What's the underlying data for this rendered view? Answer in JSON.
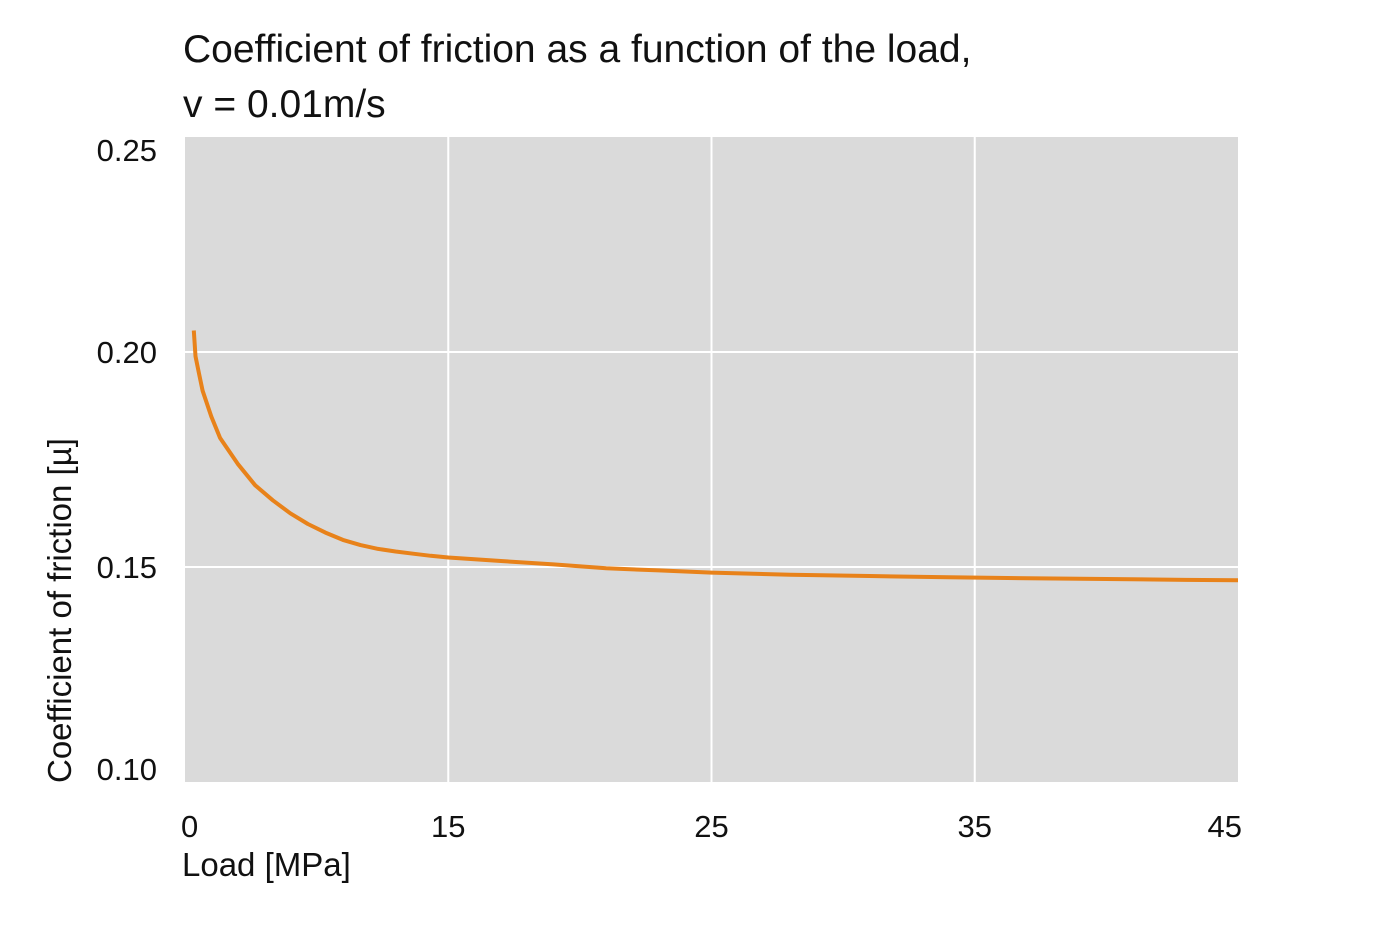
{
  "chart_data": {
    "type": "line",
    "title_lines": [
      "Coefficient of friction as a function of the load,",
      "v = 0.01m/s"
    ],
    "xlabel": "Load [MPa]",
    "ylabel": "Coefficient of friction [µ]",
    "x_ticks": [
      0,
      15,
      25,
      35,
      45
    ],
    "x_tick_labels": [
      "0",
      "15",
      "25",
      "35",
      "45"
    ],
    "y_ticks": [
      0.1,
      0.15,
      0.2,
      0.25
    ],
    "y_tick_labels": [
      "0.10",
      "0.15",
      "0.20",
      "0.25"
    ],
    "x_axis_type": "categorical-ticks",
    "ylim": [
      0.1,
      0.25
    ],
    "grid": true,
    "colors": {
      "plot_background": "#dadada",
      "grid": "#ffffff",
      "line": "#e8821a"
    },
    "series": [
      {
        "x": [
          0.5,
          0.6,
          0.8,
          1.0,
          1.5,
          2.0,
          3.0,
          4.0,
          5.0,
          6.0,
          7.0,
          8.0,
          9.0,
          10.0,
          11.0,
          12.0,
          13.0,
          14.0,
          15.0,
          17.0,
          19.0,
          21.0,
          23.0,
          25.0,
          28.0,
          31.0,
          34.0,
          37.0,
          40.0,
          43.0,
          45.0
        ],
        "y": [
          0.205,
          0.199,
          0.195,
          0.191,
          0.185,
          0.18,
          0.174,
          0.169,
          0.1655,
          0.1625,
          0.16,
          0.158,
          0.1563,
          0.1551,
          0.1542,
          0.1536,
          0.1531,
          0.1526,
          0.1522,
          0.1514,
          0.1506,
          0.1497,
          0.1492,
          0.1487,
          0.1482,
          0.1479,
          0.1476,
          0.1474,
          0.1472,
          0.147,
          0.1469
        ]
      }
    ]
  }
}
